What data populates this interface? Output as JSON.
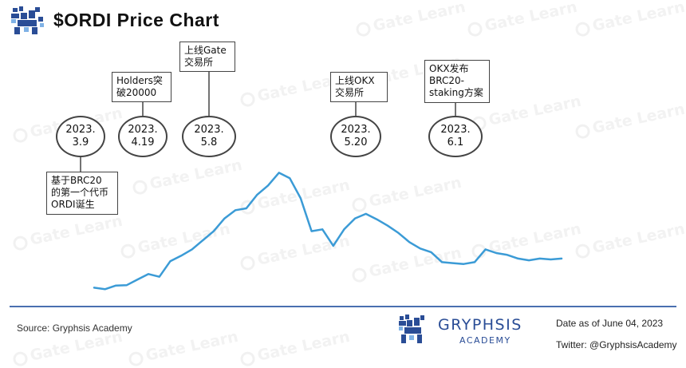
{
  "header": {
    "title": "$ORDI  Price Chart"
  },
  "chart_data": {
    "type": "line",
    "title": "$ORDI  Price Chart",
    "xlabel": "",
    "ylabel": "",
    "series_color": "#3b9bd6",
    "grid": false,
    "legend": "none",
    "x": [
      "2023-03-09",
      "2023-03-11",
      "2023-03-13",
      "2023-03-15",
      "2023-03-17",
      "2023-03-19",
      "2023-03-21",
      "2023-03-23",
      "2023-03-25",
      "2023-03-27",
      "2023-03-29",
      "2023-03-31",
      "2023-04-02",
      "2023-04-04",
      "2023-04-06",
      "2023-04-08",
      "2023-04-10",
      "2023-04-12",
      "2023-04-14",
      "2023-04-16",
      "2023-04-18",
      "2023-04-20",
      "2023-04-22",
      "2023-04-24",
      "2023-04-26",
      "2023-04-28",
      "2023-04-30",
      "2023-05-02",
      "2023-05-04",
      "2023-05-06",
      "2023-05-08",
      "2023-05-10",
      "2023-05-12",
      "2023-05-14",
      "2023-05-16",
      "2023-05-18",
      "2023-05-20",
      "2023-05-22",
      "2023-05-24",
      "2023-05-26",
      "2023-05-28",
      "2023-05-30",
      "2023-06-01",
      "2023-06-03"
    ],
    "values": [
      2,
      1.2,
      3.2,
      3.4,
      6.5,
      9.5,
      8,
      16.5,
      19.5,
      23,
      28,
      33,
      40,
      44.5,
      45.5,
      53,
      58,
      65,
      62,
      51,
      33,
      34,
      25,
      34,
      40,
      42.5,
      39.5,
      36,
      32,
      27,
      23.5,
      21.5,
      16,
      15.5,
      15,
      16,
      23,
      21,
      20,
      18,
      17,
      18,
      17.5,
      18
    ],
    "ylim": [
      0,
      70
    ],
    "events": [
      {
        "date_label": "2023.\n3.9",
        "text": "基于BRC20\n的第一个代币\nORDI诞生"
      },
      {
        "date_label": "2023.\n4.19",
        "text": "Holders突\n破20000"
      },
      {
        "date_label": "2023.\n5.8",
        "text": "上线Gate\n交易所"
      },
      {
        "date_label": "2023.\n5.20",
        "text": "上线OKX\n交易所"
      },
      {
        "date_label": "2023.\n6.1",
        "text": "OKX发布\nBRC20-\nstaking方案"
      }
    ]
  },
  "footer": {
    "source": "Source: Gryphsis Academy",
    "brand_name": "GRYPHSIS",
    "brand_sub": "ACADEMY",
    "date": "Date as of June 04, 2023",
    "twitter": "Twitter: @GryphsisAcademy"
  },
  "watermark": {
    "text": "Gate Learn"
  },
  "colors": {
    "line": "#3b9bd6",
    "brand": "#2a4d96",
    "divider": "#4a6fb0"
  }
}
